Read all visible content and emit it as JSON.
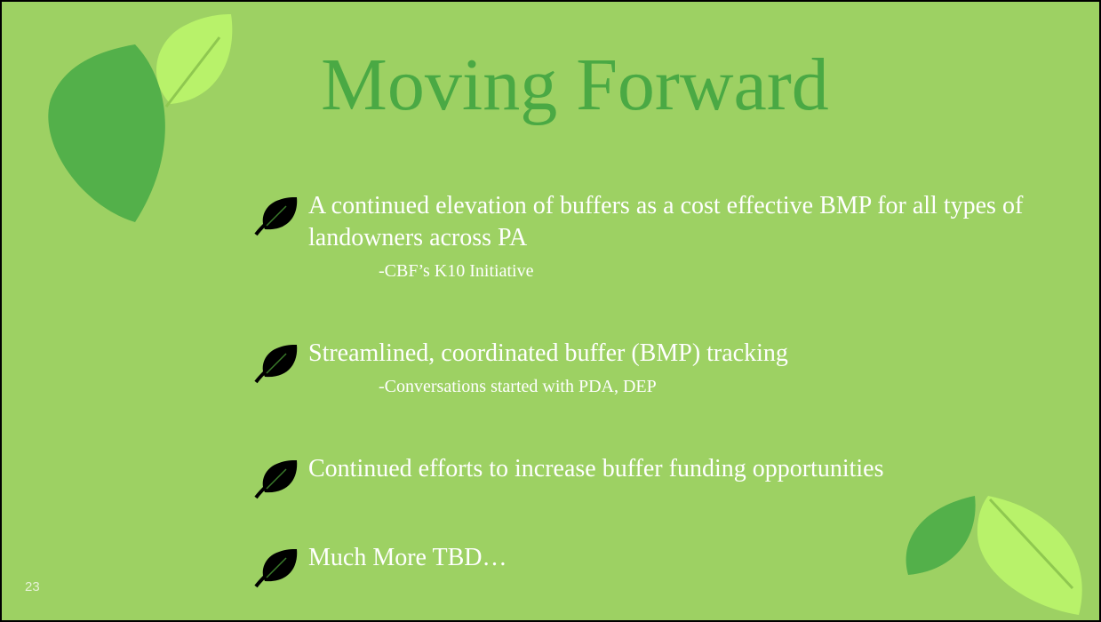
{
  "slide": {
    "title": "Moving Forward",
    "bullets": [
      {
        "text": "A continued elevation of buffers as a cost effective BMP for all types of landowners across PA",
        "sub": "-CBF’s K10 Initiative"
      },
      {
        "text": "Streamlined, coordinated buffer (BMP) tracking",
        "sub": "-Conversations started with PDA, DEP"
      },
      {
        "text": "Continued efforts to increase buffer funding opportunities"
      },
      {
        "text": "Much More TBD…"
      }
    ],
    "slide_number": "23"
  }
}
